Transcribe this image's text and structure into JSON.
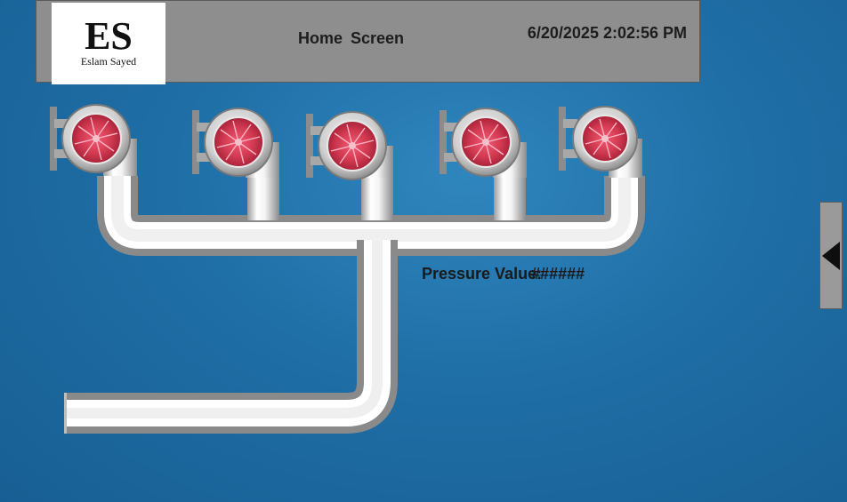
{
  "header": {
    "logo_initials": "ES",
    "logo_name": "Eslam Sayed",
    "title": "Home  Screen",
    "datetime": "6/20/2025 2:02:56 PM"
  },
  "process": {
    "pressure_label": "Pressure Value:",
    "pressure_value": "######",
    "pump_count": 5
  },
  "navigation": {
    "side_tab_icon": "triangle-left-icon"
  },
  "colors": {
    "background": "#1f6ea6",
    "header": "#8e8e8e",
    "impeller": "#c8324a",
    "pipe": "#f2f2f2"
  }
}
